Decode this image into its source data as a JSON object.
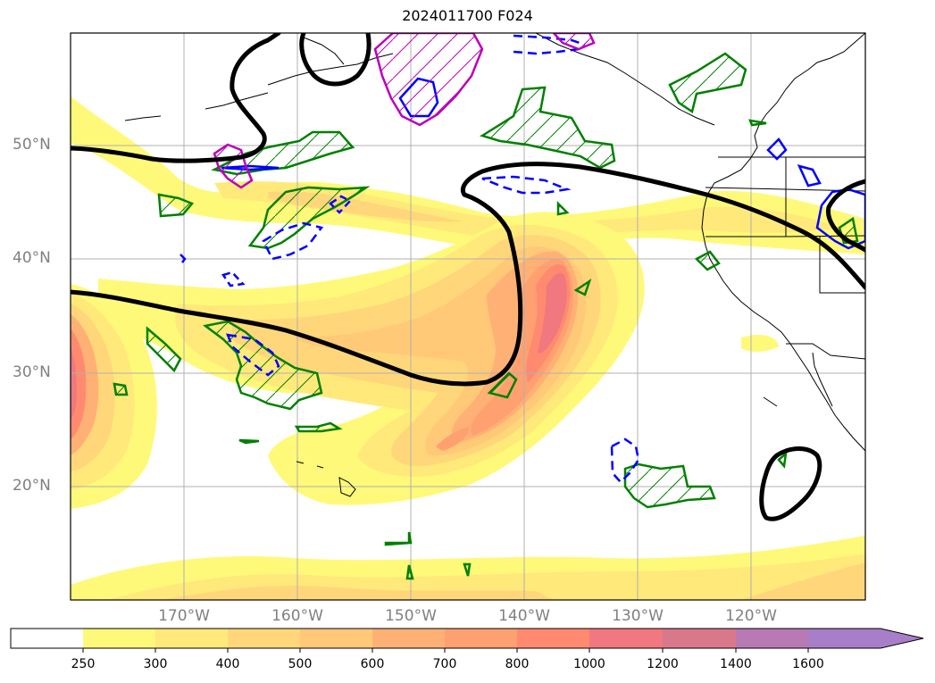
{
  "title": "2024011700 F024",
  "lat_labels": [
    "50°N",
    "40°N",
    "30°N",
    "20°N"
  ],
  "lon_labels": [
    "170°W",
    "160°W",
    "150°W",
    "140°W",
    "130°W",
    "120°W"
  ],
  "colorbar": {
    "ticks": [
      "250",
      "300",
      "400",
      "500",
      "600",
      "700",
      "800",
      "1000",
      "1200",
      "1400",
      "1600"
    ],
    "colors": [
      "#ffffff",
      "#fff97a",
      "#ffe97a",
      "#ffd77a",
      "#ffc978",
      "#ffb175",
      "#ffa070",
      "#ff8a70",
      "#f0787e",
      "#d8788a",
      "#b87ab4",
      "#a87ec8",
      "#a87ec8"
    ],
    "extend": "max"
  },
  "colors": {
    "contour_height": "#000000",
    "green_hatch": "#008000",
    "blue_contour": "#0000ff",
    "magenta_contour": "#bb00bb",
    "grid": "#b0b0b0",
    "axis_label": "#808080"
  }
}
